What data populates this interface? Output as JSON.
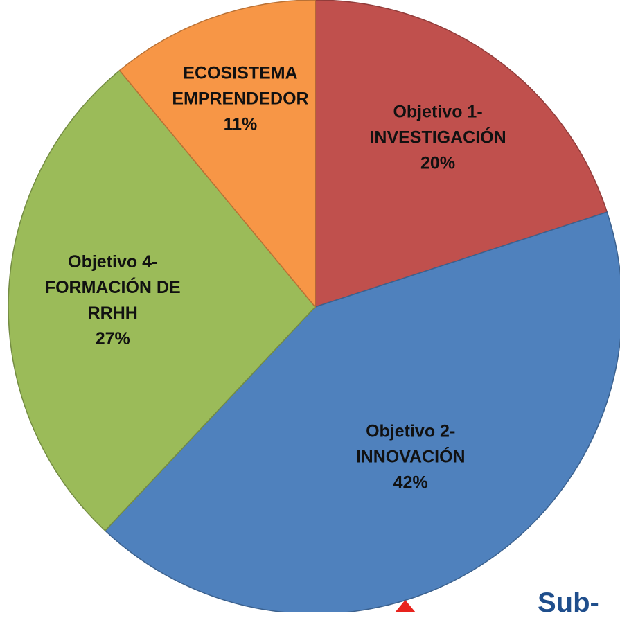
{
  "chart_data": {
    "type": "pie",
    "categories": [
      "Objetivo 1-\nINVESTIGACIÓN",
      "Objetivo 2-\nINNOVACIÓN",
      "Objetivo 4-\nFORMACIÓN DE\nRRHH",
      "ECOSISTEMA\nEMPRENDEDOR"
    ],
    "values": [
      20,
      42,
      27,
      11
    ],
    "value_labels": [
      "20%",
      "42%",
      "27%",
      "11%"
    ],
    "colors": [
      "#c0504d",
      "#4f81bd",
      "#9bbb59",
      "#f79646"
    ],
    "annotation": "Sub-"
  }
}
